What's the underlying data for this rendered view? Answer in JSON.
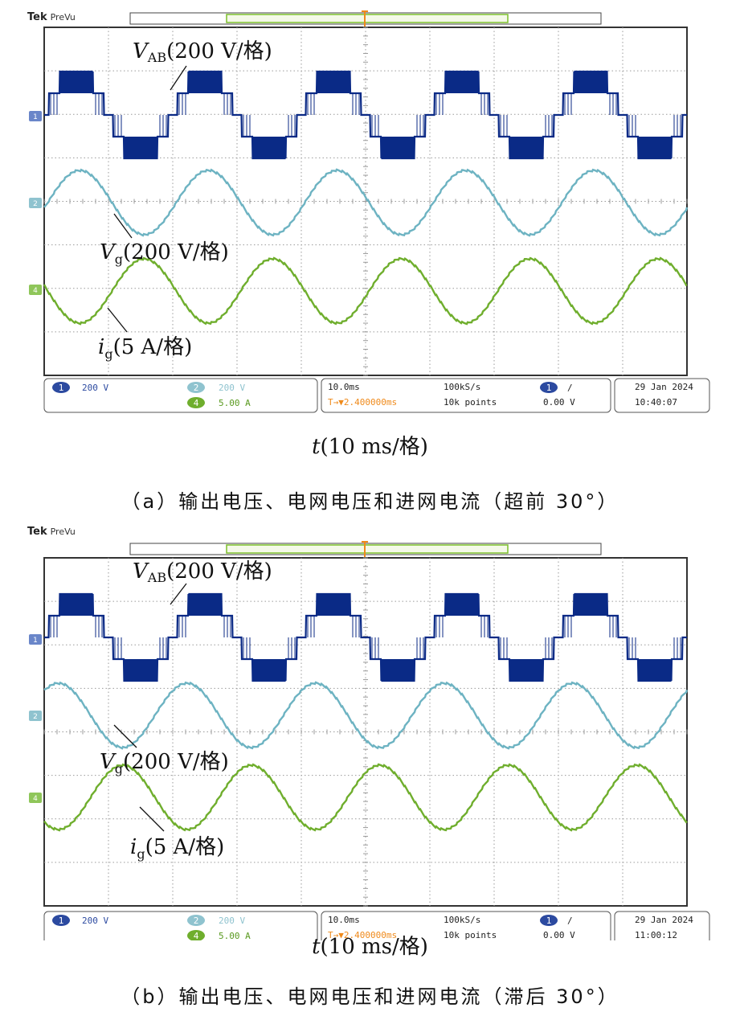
{
  "brand": "Tek",
  "brand_mode": "PreVu",
  "colors": {
    "ch1": "#0b2a86",
    "ch2": "#6db3c2",
    "ch4": "#6fae2d",
    "trigger": "#ef8a1b",
    "grid": "#9a9a9a"
  },
  "panels": [
    {
      "id": "a",
      "caption": "（a）输出电压、电网电压和进网电流（超前 30°）",
      "x_caption_var": "t",
      "x_caption_unit": "(10 ms/格)",
      "labels": {
        "vab": {
          "var": "V",
          "sub": "AB",
          "unit": "(200 V/格)"
        },
        "vg": {
          "var": "V",
          "sub": "g",
          "unit": "(200 V/格)"
        },
        "ig": {
          "var": "i",
          "sub": "g",
          "unit": "(5 A/格)"
        }
      },
      "status": {
        "ch1_num": "1",
        "ch1_scale": "200 V",
        "ch2_num": "2",
        "ch2_scale": "200 V",
        "ch4_num": "4",
        "ch4_scale": "5.00 A",
        "timebase": "10.0ms",
        "trigger_pos": "T→▼2.400000ms",
        "sample_rate": "100kS/s",
        "record": "10k points",
        "trig_ch": "1",
        "trig_slope": "/",
        "trig_level": "0.00 V",
        "date": "29 Jan  2024",
        "time": "10:40:07"
      },
      "chart_data": {
        "type": "line",
        "time_div_ms": 10,
        "x_range_ms": [
          0,
          100
        ],
        "grid": "on, 10 x 8 divisions",
        "series": [
          {
            "name": "VAB",
            "waveform": "5-level stepped PWM",
            "frequency_hz": 50,
            "scale_per_div": "200 V",
            "levels": 5
          },
          {
            "name": "Vg",
            "waveform": "sine",
            "frequency_hz": 50,
            "scale_per_div": "200 V",
            "phase_relation": "VAB leads Vg by 30°"
          },
          {
            "name": "ig",
            "waveform": "sine",
            "frequency_hz": 50,
            "scale_per_div": "5.00 A",
            "phase_relation": "in phase with Vg"
          }
        ]
      }
    },
    {
      "id": "b",
      "caption": "（b）输出电压、电网电压和进网电流（滞后 30°）",
      "x_caption_var": "t",
      "x_caption_unit": "(10 ms/格)",
      "labels": {
        "vab": {
          "var": "V",
          "sub": "AB",
          "unit": "(200 V/格)"
        },
        "vg": {
          "var": "V",
          "sub": "g",
          "unit": "(200 V/格)"
        },
        "ig": {
          "var": "i",
          "sub": "g",
          "unit": "(5 A/格)"
        }
      },
      "status": {
        "ch1_num": "1",
        "ch1_scale": "200 V",
        "ch2_num": "2",
        "ch2_scale": "200 V",
        "ch4_num": "4",
        "ch4_scale": "5.00 A",
        "timebase": "10.0ms",
        "trigger_pos": "T→▼2.400000ms",
        "sample_rate": "100kS/s",
        "record": "10k points",
        "trig_ch": "1",
        "trig_slope": "/",
        "trig_level": "0.00 V",
        "date": "29 Jan  2024",
        "time": "11:00:12"
      },
      "chart_data": {
        "type": "line",
        "time_div_ms": 10,
        "x_range_ms": [
          0,
          100
        ],
        "grid": "on, 10 x 8 divisions",
        "series": [
          {
            "name": "VAB",
            "waveform": "5-level stepped PWM",
            "frequency_hz": 50,
            "scale_per_div": "200 V",
            "levels": 5
          },
          {
            "name": "Vg",
            "waveform": "sine",
            "frequency_hz": 50,
            "scale_per_div": "200 V",
            "phase_relation": "VAB lags Vg by 30°"
          },
          {
            "name": "ig",
            "waveform": "sine",
            "frequency_hz": 50,
            "scale_per_div": "5.00 A",
            "phase_relation": "in phase with Vg"
          }
        ]
      }
    }
  ]
}
